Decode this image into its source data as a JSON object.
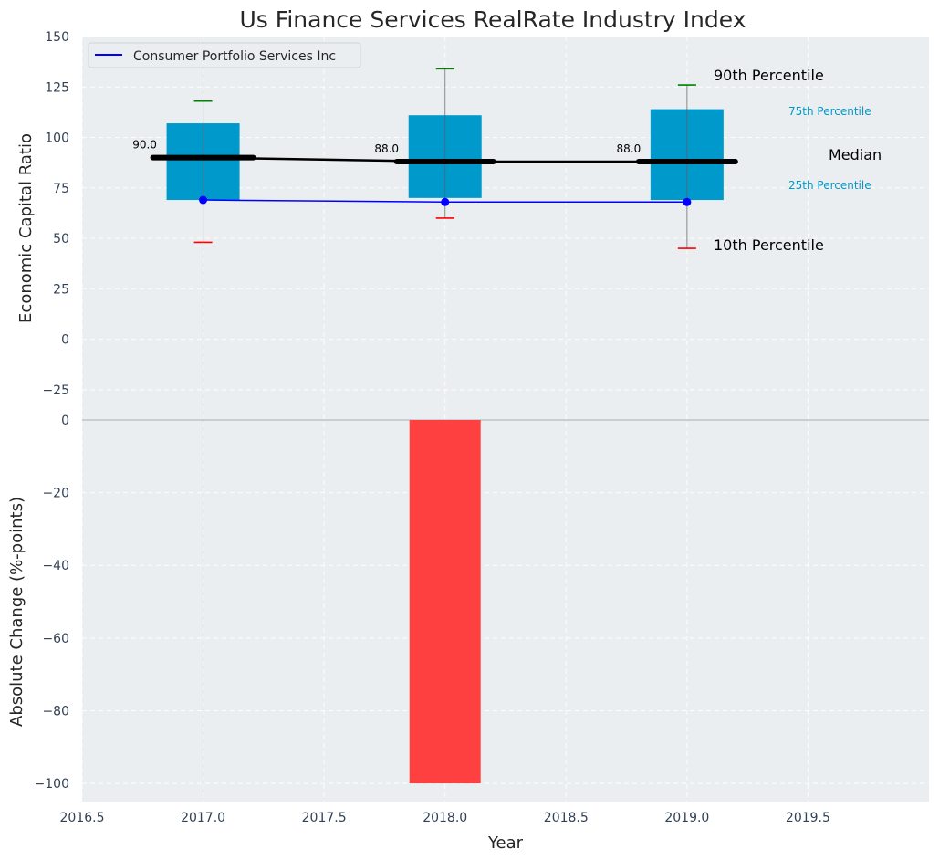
{
  "chart_data": [
    {
      "type": "box",
      "title": "Us Finance Services RealRate Industry Index",
      "ylabel": "Economic Capital Ratio",
      "xlim": [
        2016.5,
        2020.0
      ],
      "ylim": [
        -40,
        150
      ],
      "yticks": [
        150,
        125,
        100,
        75,
        50,
        25,
        0,
        -25
      ],
      "x": [
        2017,
        2018,
        2019
      ],
      "p10": [
        48,
        60,
        45
      ],
      "q25": [
        69,
        70,
        69
      ],
      "median": [
        90,
        88,
        88
      ],
      "q75": [
        107,
        111,
        114
      ],
      "p90": [
        118,
        134,
        126
      ],
      "median_labels": [
        "90.0",
        "88.0",
        "88.0"
      ],
      "company": {
        "name": "Consumer Portfolio Services Inc",
        "values": [
          69,
          68,
          68
        ]
      },
      "legend": "top-left",
      "annotations": {
        "p90": "90th Percentile",
        "q75": "75th Percentile",
        "median": "Median",
        "q25": "25th Percentile",
        "p10": "10th Percentile"
      }
    },
    {
      "type": "bar",
      "ylabel": "Absolute Change (%-points)",
      "xlabel": "Year",
      "xlim": [
        2016.5,
        2020.0
      ],
      "ylim": [
        -105,
        0
      ],
      "yticks": [
        0,
        -20,
        -40,
        -60,
        -80,
        -100
      ],
      "xticks": [
        "2016.5",
        "2017.0",
        "2017.5",
        "2018.0",
        "2018.5",
        "2019.0",
        "2019.5"
      ],
      "categories": [
        2018
      ],
      "values": [
        -100
      ]
    }
  ],
  "colors": {
    "box": "#0099cc",
    "company": "#0000ff",
    "bar": "#ff4040",
    "p90": "#008000",
    "p10": "#ff0000",
    "panel": "#eaeef0"
  }
}
